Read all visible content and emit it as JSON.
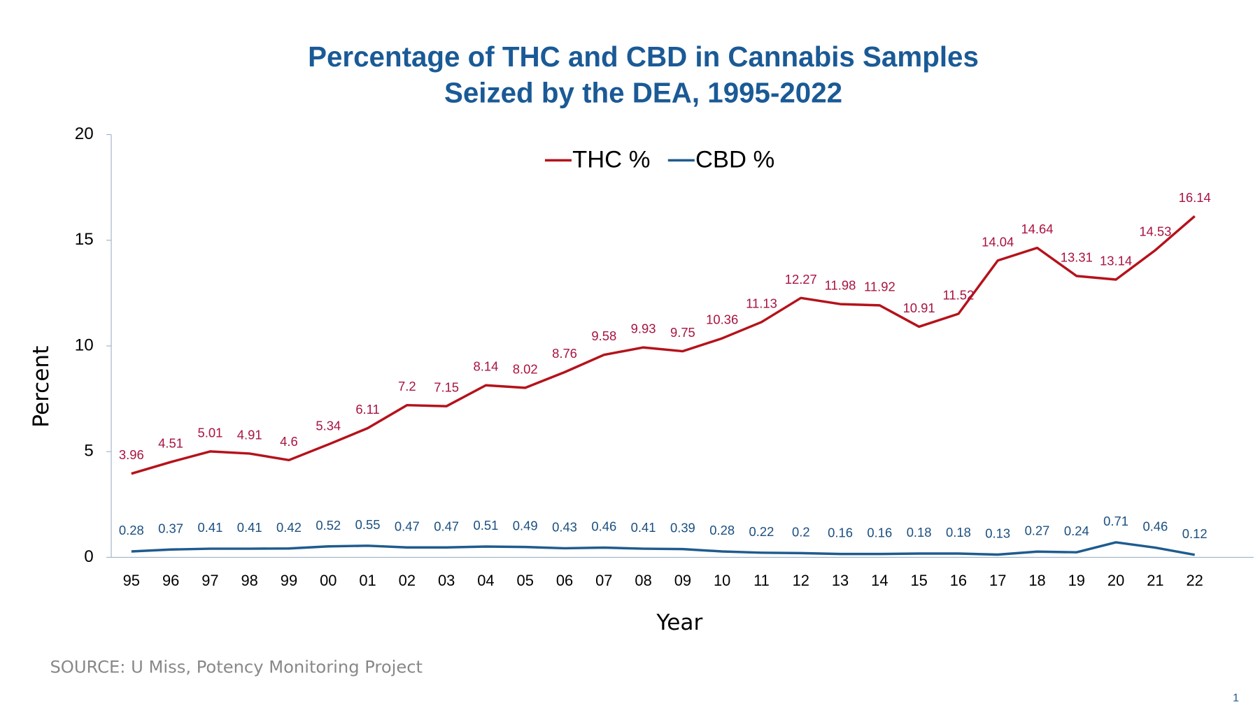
{
  "chart_data": {
    "type": "line",
    "title": [
      "Percentage of THC and CBD in Cannabis Samples",
      "Seized by the DEA, 1995-2022"
    ],
    "x_label": "Year",
    "y_label": "Percent",
    "categories": [
      "95",
      "96",
      "97",
      "98",
      "99",
      "00",
      "01",
      "02",
      "03",
      "04",
      "05",
      "06",
      "07",
      "08",
      "09",
      "10",
      "11",
      "12",
      "13",
      "14",
      "15",
      "16",
      "17",
      "18",
      "19",
      "20",
      "21",
      "22"
    ],
    "series": [
      {
        "name": "THC %",
        "color": "#b5121b",
        "label_color": "#a8133f",
        "values": [
          3.96,
          4.51,
          5.01,
          4.91,
          4.6,
          5.34,
          6.11,
          7.2,
          7.15,
          8.14,
          8.02,
          8.76,
          9.58,
          9.93,
          9.75,
          10.36,
          11.13,
          12.27,
          11.98,
          11.92,
          10.91,
          11.52,
          14.04,
          14.64,
          13.31,
          13.14,
          14.53,
          16.14
        ]
      },
      {
        "name": "CBD %",
        "color": "#1f5b8e",
        "label_color": "#1a4f80",
        "values": [
          0.28,
          0.37,
          0.41,
          0.41,
          0.42,
          0.52,
          0.55,
          0.47,
          0.47,
          0.51,
          0.49,
          0.43,
          0.46,
          0.41,
          0.39,
          0.28,
          0.22,
          0.2,
          0.16,
          0.16,
          0.18,
          0.18,
          0.13,
          0.27,
          0.24,
          0.71,
          0.46,
          0.12
        ]
      }
    ],
    "ylim": [
      0,
      20
    ],
    "yticks": [
      0,
      5,
      10,
      15,
      20
    ],
    "grid": false,
    "legend": "top"
  },
  "source": "SOURCE: U Miss, Potency Monitoring Project",
  "page_number": 1
}
